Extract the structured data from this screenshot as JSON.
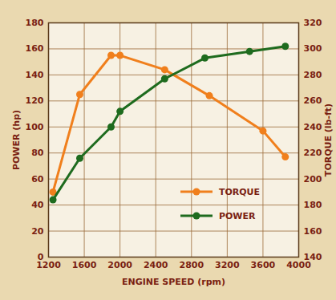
{
  "chart_data": {
    "type": "line",
    "x_label": "ENGINE SPEED (rpm)",
    "y_label": "POWER (hp)",
    "y2_label": "TORQUE (lb-ft)",
    "xlim": [
      1200,
      4000
    ],
    "xticks": [
      1200,
      1600,
      2000,
      2400,
      2800,
      3200,
      3600,
      4000
    ],
    "ylim": [
      0,
      180
    ],
    "yticks": [
      0,
      20,
      40,
      60,
      80,
      100,
      120,
      140,
      160,
      180
    ],
    "y2lim": [
      140,
      320
    ],
    "y2ticks": [
      140,
      160,
      180,
      200,
      220,
      240,
      260,
      280,
      300,
      320
    ],
    "grid": true,
    "legend": "lower right",
    "series": [
      {
        "name": "TORQUE",
        "color": "#f07f1c",
        "axis": "y2",
        "marker": "circle",
        "x": [
          1250,
          1550,
          1900,
          2000,
          2500,
          3000,
          3600,
          3850
        ],
        "values": [
          190,
          265,
          295,
          295,
          284,
          264,
          237,
          217
        ]
      },
      {
        "name": "POWER",
        "color": "#1e6b1e",
        "axis": "y",
        "marker": "circle",
        "x": [
          1250,
          1550,
          1900,
          2000,
          2500,
          2950,
          3450,
          3850
        ],
        "values": [
          44,
          76,
          100,
          112,
          137,
          153,
          158,
          162
        ]
      }
    ]
  }
}
